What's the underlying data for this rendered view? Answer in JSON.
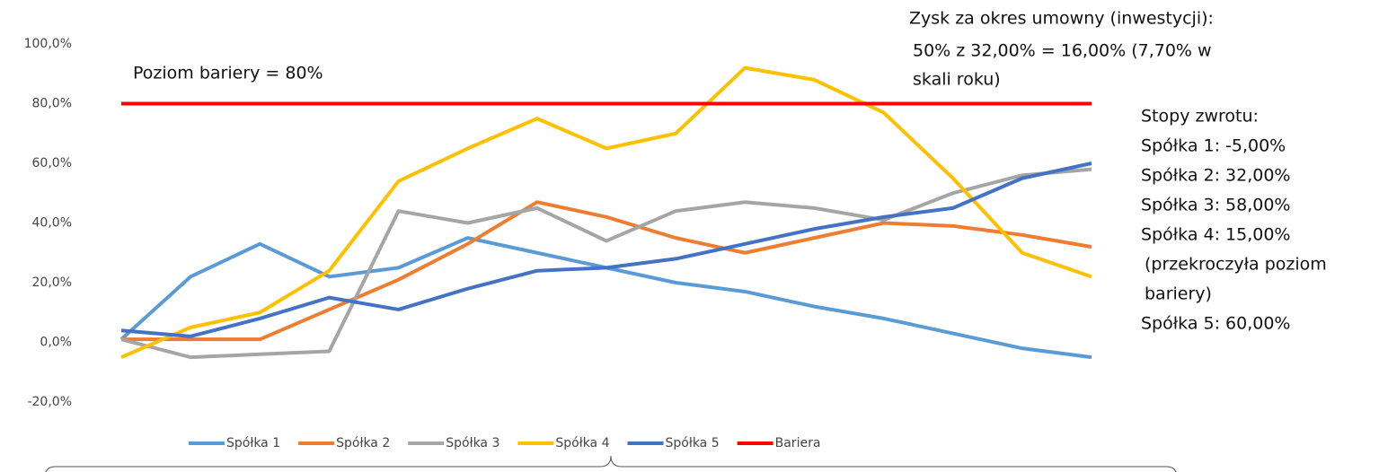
{
  "chart_data": {
    "type": "line",
    "categories": [
      null,
      null,
      null,
      null,
      null,
      null,
      null,
      null,
      null,
      null,
      null,
      null,
      null,
      null,
      null
    ],
    "series": [
      {
        "name": "Spółka 1",
        "color": "#5b9bd5",
        "values": [
          1,
          22,
          33,
          22,
          25,
          35,
          30,
          25,
          20,
          17,
          12,
          8,
          3,
          -2,
          -5
        ]
      },
      {
        "name": "Spółka 2",
        "color": "#ed7d31",
        "values": [
          1,
          1,
          1,
          11,
          21,
          33,
          47,
          42,
          35,
          30,
          35,
          40,
          39,
          36,
          32
        ]
      },
      {
        "name": "Spółka 3",
        "color": "#a5a5a5",
        "values": [
          1,
          -5,
          -4,
          -3,
          44,
          40,
          45,
          34,
          44,
          47,
          45,
          41,
          50,
          56,
          58
        ]
      },
      {
        "name": "Spółka 4",
        "color": "#ffc000",
        "values": [
          -5,
          5,
          10,
          24,
          54,
          65,
          75,
          65,
          70,
          92,
          88,
          77,
          55,
          30,
          22
        ]
      },
      {
        "name": "Spółka 5",
        "color": "#4472c4",
        "values": [
          4,
          2,
          8,
          15,
          11,
          18,
          24,
          25,
          28,
          33,
          38,
          42,
          45,
          55,
          60
        ]
      },
      {
        "name": "Bariera",
        "color": "#ff0000",
        "values": [
          80,
          80,
          80,
          80,
          80,
          80,
          80,
          80,
          80,
          80,
          80,
          80,
          80,
          80,
          80
        ]
      }
    ],
    "ylim": [
      -20,
      100
    ],
    "yticks": [
      {
        "value": -20,
        "label": "-20,0%"
      },
      {
        "value": 0,
        "label": "0,0%"
      },
      {
        "value": 20,
        "label": "20,0%"
      },
      {
        "value": 40,
        "label": "40,0%"
      },
      {
        "value": 60,
        "label": "60,0%"
      },
      {
        "value": 80,
        "label": "80,0%"
      },
      {
        "value": 100,
        "label": "100,0%"
      }
    ],
    "grid": false,
    "legend": "bottom",
    "annotations": [
      "Poziom bariery = 80%",
      "Zysk za okres umowny (inwestycji):",
      "50% z 32,00% = 16,00% (7,70% w",
      "skali roku)",
      "Stopy zwrotu:",
      "Spółka 1: -5,00%",
      "Spółka 2: 32,00%",
      "Spółka 3: 58,00%",
      "Spółka 4: 15,00%",
      "(przekroczyła poziom",
      "bariery)",
      "Spółka 5: 60,00%"
    ]
  }
}
